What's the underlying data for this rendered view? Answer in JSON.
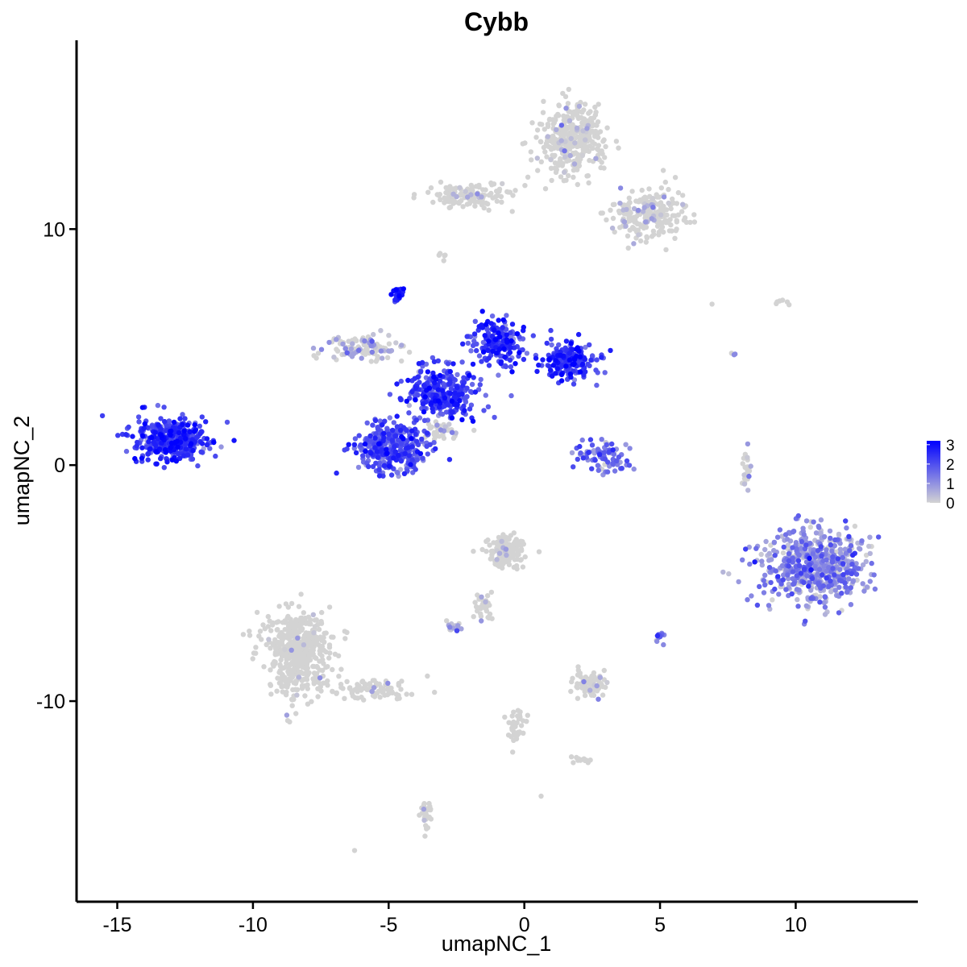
{
  "chart_data": {
    "type": "scatter",
    "title": "Cybb",
    "xlabel": "umapNC_1",
    "ylabel": "umapNC_2",
    "xlim": [
      -16.5,
      14.5
    ],
    "ylim": [
      -18.5,
      18.0
    ],
    "x_ticks": [
      {
        "value": -15,
        "label": "-15"
      },
      {
        "value": -10,
        "label": "-10"
      },
      {
        "value": -5,
        "label": "-5"
      },
      {
        "value": 0,
        "label": "0"
      },
      {
        "value": 5,
        "label": "5"
      },
      {
        "value": 10,
        "label": "10"
      }
    ],
    "y_ticks": [
      {
        "value": -10,
        "label": "-10"
      },
      {
        "value": 0,
        "label": "0"
      },
      {
        "value": 10,
        "label": "10"
      }
    ],
    "grid": false,
    "legend": {
      "position": "right",
      "type": "colorbar",
      "labels": [
        "3",
        "2",
        "1",
        "0"
      ],
      "range": [
        0,
        3.2
      ]
    },
    "colors": {
      "low": "#d3d3d3",
      "high": "#0000ff"
    },
    "clusters": [
      {
        "center": [
          -13.0,
          1.1
        ],
        "spread": [
          1.1,
          0.75
        ],
        "n": 420,
        "expr": 2.2
      },
      {
        "center": [
          -4.8,
          0.8
        ],
        "spread": [
          1.1,
          0.9
        ],
        "n": 350,
        "expr": 1.9
      },
      {
        "center": [
          -3.0,
          3.0
        ],
        "spread": [
          1.1,
          0.9
        ],
        "n": 300,
        "expr": 2.1
      },
      {
        "center": [
          -1.0,
          5.2
        ],
        "spread": [
          0.8,
          0.8
        ],
        "n": 180,
        "expr": 2.3
      },
      {
        "center": [
          1.6,
          4.4
        ],
        "spread": [
          0.9,
          0.6
        ],
        "n": 200,
        "expr": 2.3
      },
      {
        "center": [
          -4.6,
          7.3
        ],
        "spread": [
          0.2,
          0.25
        ],
        "n": 25,
        "expr": 2.4
      },
      {
        "center": [
          -6.0,
          5.0
        ],
        "spread": [
          1.2,
          0.5
        ],
        "n": 120,
        "expr": 0.5
      },
      {
        "center": [
          3.0,
          0.3
        ],
        "spread": [
          0.8,
          0.6
        ],
        "n": 80,
        "expr": 1.5
      },
      {
        "center": [
          10.7,
          -4.3
        ],
        "spread": [
          1.6,
          1.3
        ],
        "n": 600,
        "expr": 1.0
      },
      {
        "center": [
          1.8,
          13.8
        ],
        "spread": [
          1.0,
          1.3
        ],
        "n": 350,
        "expr": 0.1
      },
      {
        "center": [
          -2.0,
          11.4
        ],
        "spread": [
          1.3,
          0.4
        ],
        "n": 130,
        "expr": 0.05
      },
      {
        "center": [
          4.6,
          10.7
        ],
        "spread": [
          1.2,
          0.9
        ],
        "n": 220,
        "expr": 0.2
      },
      {
        "center": [
          -8.3,
          -8.0
        ],
        "spread": [
          1.0,
          1.5
        ],
        "n": 520,
        "expr": 0.02
      },
      {
        "center": [
          -5.5,
          -9.5
        ],
        "spread": [
          1.2,
          0.4
        ],
        "n": 90,
        "expr": 0.02
      },
      {
        "center": [
          -0.7,
          -3.6
        ],
        "spread": [
          0.6,
          0.6
        ],
        "n": 150,
        "expr": 0.05
      },
      {
        "center": [
          -1.5,
          -6.0
        ],
        "spread": [
          0.3,
          0.6
        ],
        "n": 30,
        "expr": 0.02
      },
      {
        "center": [
          -2.6,
          -6.9
        ],
        "spread": [
          0.3,
          0.2
        ],
        "n": 18,
        "expr": 0.7
      },
      {
        "center": [
          2.5,
          -9.3
        ],
        "spread": [
          0.6,
          0.5
        ],
        "n": 70,
        "expr": 0.2
      },
      {
        "center": [
          2.2,
          -12.5
        ],
        "spread": [
          0.3,
          0.1
        ],
        "n": 15,
        "expr": 0.0
      },
      {
        "center": [
          -0.3,
          -11.0
        ],
        "spread": [
          0.3,
          0.7
        ],
        "n": 40,
        "expr": 0.0
      },
      {
        "center": [
          -3.6,
          -14.8
        ],
        "spread": [
          0.2,
          0.5
        ],
        "n": 30,
        "expr": 0.05
      },
      {
        "center": [
          8.2,
          -0.2
        ],
        "spread": [
          0.2,
          0.6
        ],
        "n": 25,
        "expr": 0.4
      },
      {
        "center": [
          5.0,
          -7.3
        ],
        "spread": [
          0.15,
          0.2
        ],
        "n": 12,
        "expr": 1.2
      },
      {
        "center": [
          -3.0,
          1.5
        ],
        "spread": [
          0.6,
          0.3
        ],
        "n": 40,
        "expr": 0.2
      },
      {
        "center": [
          -3.0,
          8.8
        ],
        "spread": [
          0.1,
          0.2
        ],
        "n": 6,
        "expr": 0.0
      },
      {
        "center": [
          9.5,
          6.9
        ],
        "spread": [
          0.4,
          0.1
        ],
        "n": 6,
        "expr": 0.0
      },
      {
        "center": [
          7.7,
          4.7
        ],
        "spread": [
          0.05,
          0.1
        ],
        "n": 3,
        "expr": 0.6
      },
      {
        "center": [
          -6.2,
          -16.3
        ],
        "spread": [
          0.05,
          0.05
        ],
        "n": 1,
        "expr": 1.0
      },
      {
        "center": [
          0.6,
          -14.0
        ],
        "spread": [
          0.05,
          0.05
        ],
        "n": 1,
        "expr": 0.0
      },
      {
        "center": [
          6.9,
          6.9
        ],
        "spread": [
          0.05,
          0.05
        ],
        "n": 1,
        "expr": 0.0
      }
    ]
  }
}
